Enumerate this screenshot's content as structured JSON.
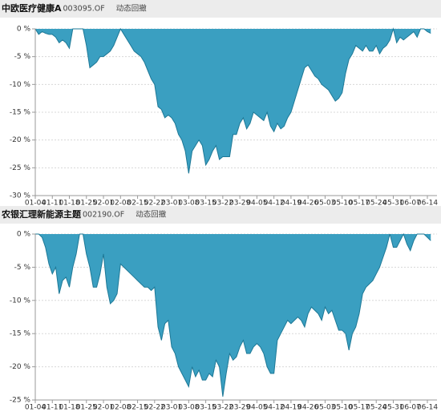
{
  "chart_data": [
    {
      "type": "area",
      "title": "中欧医疗健康A",
      "subtitle": "003095.OF",
      "label": "动态回撤",
      "categories": [
        "01-04",
        null,
        null,
        null,
        null,
        "01-11",
        null,
        null,
        null,
        null,
        "01-18",
        null,
        null,
        null,
        null,
        "01-25",
        null,
        null,
        null,
        null,
        "02-01",
        null,
        null,
        null,
        null,
        "02-08",
        null,
        null,
        null,
        null,
        "02-15",
        null,
        null,
        null,
        null,
        "02-22",
        null,
        null,
        null,
        null,
        "03-01",
        null,
        null,
        null,
        null,
        "03-08",
        null,
        null,
        null,
        null,
        "03-15",
        null,
        null,
        null,
        null,
        "03-22",
        null,
        null,
        null,
        null,
        "03-29",
        null,
        null,
        null,
        null,
        "04-05",
        null,
        null,
        null,
        null,
        "04-12",
        null,
        null,
        null,
        null,
        "04-19",
        null,
        null,
        null,
        null,
        "04-26",
        null,
        null,
        null,
        null,
        "05-03",
        null,
        null,
        null,
        null,
        "05-10",
        null,
        null,
        null,
        null,
        "05-17",
        null,
        null,
        null,
        null,
        "05-24",
        null,
        null,
        null,
        null,
        "05-31",
        null,
        null,
        null,
        null,
        "06-07",
        null,
        null,
        null,
        null,
        "06-14",
        null
      ],
      "values": [
        0,
        -1,
        -0.5,
        -0.8,
        -1,
        -1,
        -1.5,
        -2.5,
        -2,
        -2.5,
        -3.5,
        0,
        0,
        0,
        0,
        -3,
        -7,
        -6.5,
        -6,
        -5,
        -5,
        -4.5,
        -4,
        -3,
        -1.5,
        0,
        -1,
        -2,
        -3,
        -4,
        -4.5,
        -5,
        -6,
        -7.5,
        -9,
        -10,
        -14,
        -14.5,
        -16,
        -15.5,
        -16,
        -17,
        -19,
        -20,
        -22,
        -26,
        -22,
        -21,
        -20,
        -21,
        -24.5,
        -23.5,
        -22,
        -21,
        -23.5,
        -23,
        -23,
        -23,
        -19,
        -19,
        -17,
        -16,
        -18,
        -17,
        -15,
        -15.5,
        -16,
        -16.5,
        -15,
        -17.5,
        -18.5,
        -17,
        -18,
        -17.5,
        -16,
        -15,
        -13,
        -11,
        -9,
        -7,
        -6.5,
        -7.5,
        -8.5,
        -9,
        -10,
        -10.5,
        -11,
        -12,
        -13,
        -12.5,
        -11.5,
        -8,
        -5.5,
        -4.5,
        -3,
        -3.5,
        -4,
        -3,
        -4,
        -4,
        -3,
        -4.5,
        -3.5,
        -3,
        -2,
        0,
        -2.5,
        -1.5,
        -2,
        -1.5,
        -1,
        -0.5,
        -1.5,
        0,
        0,
        -0.5,
        -0.8
      ],
      "color": "#3a9fc1",
      "line_color": "#1d7896",
      "ylim": [
        -30,
        0
      ],
      "yticks": [
        {
          "value": 0,
          "label": "0 %"
        },
        {
          "value": -5,
          "label": "-5 %"
        },
        {
          "value": -10,
          "label": "-10 %"
        },
        {
          "value": -15,
          "label": "-15 %"
        },
        {
          "value": -20,
          "label": "-20 %"
        },
        {
          "value": -25,
          "label": "-25 %"
        },
        {
          "value": -30,
          "label": "-30 %"
        }
      ],
      "grid": true
    },
    {
      "type": "area",
      "title": "农银汇理新能源主题",
      "subtitle": "002190.OF",
      "label": "动态回撤",
      "categories": [
        "01-04",
        null,
        null,
        null,
        null,
        "01-11",
        null,
        null,
        null,
        null,
        "01-18",
        null,
        null,
        null,
        null,
        "01-25",
        null,
        null,
        null,
        null,
        "02-01",
        null,
        null,
        null,
        null,
        "02-08",
        null,
        null,
        null,
        null,
        "02-15",
        null,
        null,
        null,
        null,
        "02-22",
        null,
        null,
        null,
        null,
        "03-01",
        null,
        null,
        null,
        null,
        "03-08",
        null,
        null,
        null,
        null,
        "03-15",
        null,
        null,
        null,
        null,
        "03-22",
        null,
        null,
        null,
        null,
        "03-29",
        null,
        null,
        null,
        null,
        "04-05",
        null,
        null,
        null,
        null,
        "04-12",
        null,
        null,
        null,
        null,
        "04-19",
        null,
        null,
        null,
        null,
        "04-26",
        null,
        null,
        null,
        null,
        "05-03",
        null,
        null,
        null,
        null,
        "05-10",
        null,
        null,
        null,
        null,
        "05-17",
        null,
        null,
        null,
        null,
        "05-24",
        null,
        null,
        null,
        null,
        "05-31",
        null,
        null,
        null,
        null,
        "06-07",
        null,
        null,
        null,
        null,
        "06-14",
        null
      ],
      "values": [
        0,
        0,
        -0.5,
        -2,
        -4.5,
        -6,
        -5,
        -9,
        -7,
        -6.5,
        -8,
        -5,
        -3,
        0,
        0,
        -3,
        -5,
        -8,
        -8,
        -6,
        -3,
        -8,
        -10.5,
        -10,
        -9,
        -4.5,
        -5,
        -5.5,
        -6,
        -6.5,
        -7,
        -7.5,
        -8,
        -8,
        -8.5,
        -8,
        -14,
        -16,
        -13.5,
        -13,
        -17,
        -18,
        -20,
        -21,
        -22,
        -23,
        -20,
        -21.5,
        -20.5,
        -22,
        -22,
        -21,
        -21.5,
        -19,
        -20,
        -24.5,
        -21,
        -18,
        -19,
        -18.5,
        -17,
        -16,
        -18,
        -18,
        -17,
        -16.5,
        -17,
        -18,
        -20,
        -21,
        -21,
        -16,
        -15,
        -14,
        -13,
        -13.5,
        -13,
        -12.5,
        -13,
        -14,
        -12,
        -11,
        -11.5,
        -12,
        -13,
        -11,
        -12,
        -11.5,
        -13,
        -14.5,
        -14.5,
        -15,
        -17.5,
        -15,
        -14,
        -12,
        -9,
        -8,
        -7.5,
        -7,
        -6,
        -5,
        -3.5,
        -2,
        0,
        -2,
        -2,
        -1,
        0,
        -1.5,
        -2.5,
        -1,
        0,
        0,
        0,
        -0.5,
        -1
      ],
      "color": "#3a9fc1",
      "line_color": "#1d7896",
      "ylim": [
        -25,
        0
      ],
      "yticks": [
        {
          "value": 0,
          "label": "0 %"
        },
        {
          "value": -5,
          "label": "-5 %"
        },
        {
          "value": -10,
          "label": "-10 %"
        },
        {
          "value": -15,
          "label": "-15 %"
        },
        {
          "value": -20,
          "label": "-20 %"
        },
        {
          "value": -25,
          "label": "-25 %"
        }
      ],
      "grid": true
    }
  ]
}
